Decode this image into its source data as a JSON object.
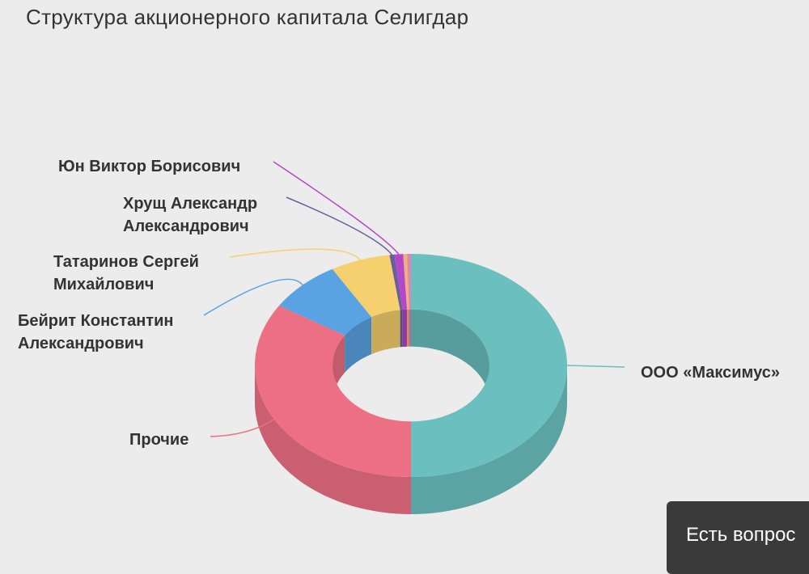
{
  "chart_data": {
    "type": "pie",
    "variant": "donut-3d",
    "title": "Структура акционерного капитала Селигдар",
    "unit": "%",
    "slices": [
      {
        "label": "ООО «Максимус»",
        "label_lines": [
          "ООО «Максимус»"
        ],
        "value": 50.0,
        "color": "#6bbfbf"
      },
      {
        "label": "Прочие",
        "label_lines": [
          "Прочие"
        ],
        "value": 34.0,
        "color": "#ec6f84"
      },
      {
        "label": "Бейрит Константин Александрович",
        "label_lines": [
          "Бейрит Константин",
          "Александрович"
        ],
        "value": 7.6,
        "color": "#5aa3e2"
      },
      {
        "label": "Татаринов Сергей Михайлович",
        "label_lines": [
          "Татаринов Сергей",
          "Михайлович"
        ],
        "value": 6.2,
        "color": "#f6d06e"
      },
      {
        "label": "Хрущ Александр Александрович",
        "label_lines": [
          "Хрущ Александр",
          "Александрович"
        ],
        "value": 0.5,
        "color": "#6a5f9e"
      },
      {
        "label": "Юн Виктор Борисович",
        "label_lines": [
          "Юн Виктор Борисович"
        ],
        "value": 0.9,
        "color": "#b446c8"
      },
      {
        "label": "",
        "label_lines": [],
        "value": 0.4,
        "color": "#f0b07a"
      },
      {
        "label": "",
        "label_lines": [],
        "value": 0.4,
        "color": "#d98ab0"
      }
    ],
    "legend": "none",
    "grid": false
  },
  "chat_widget": {
    "text": "Есть вопрос"
  }
}
